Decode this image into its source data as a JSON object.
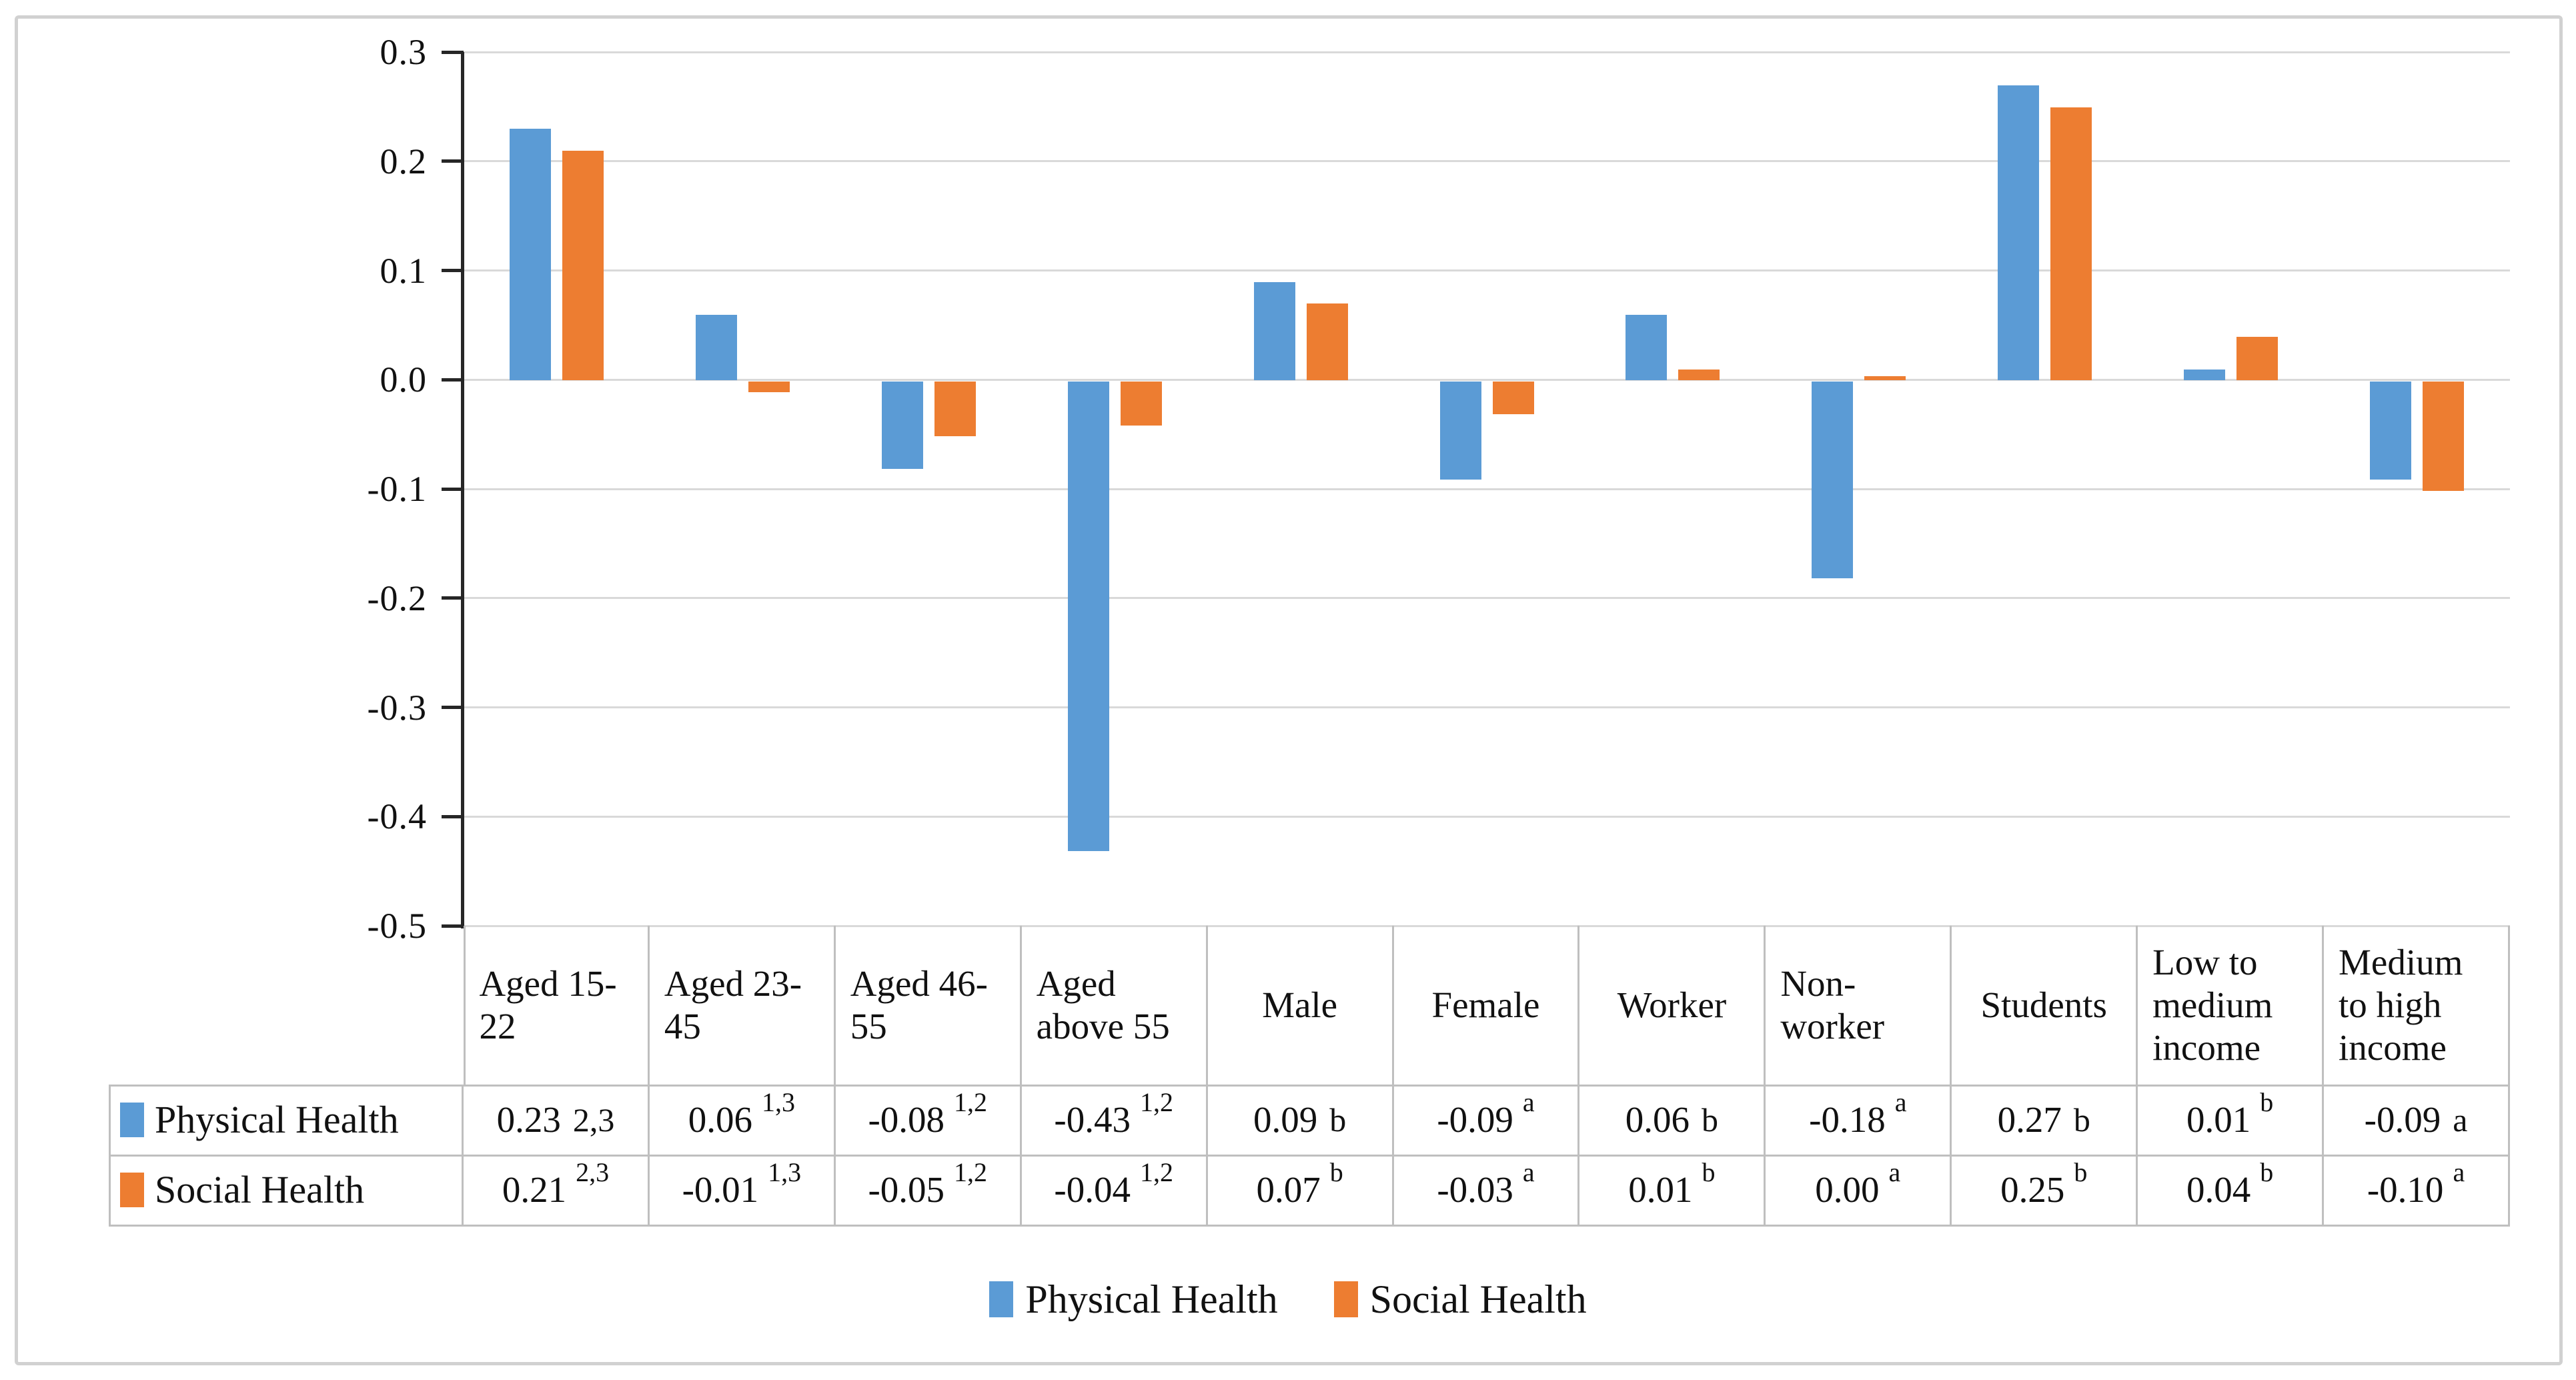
{
  "chart_data": {
    "type": "bar",
    "title": "",
    "xlabel": "",
    "ylabel": "",
    "ylim": [
      -0.5,
      0.3
    ],
    "y_ticks": [
      "0.3",
      "0.2",
      "0.1",
      "0.0",
      "-0.1",
      "-0.2",
      "-0.3",
      "-0.4",
      "-0.5"
    ],
    "grid": true,
    "legend_position": "bottom",
    "categories": [
      "Aged 15-22",
      "Aged 23-45",
      "Aged 46-55",
      "Aged above 55",
      "Male",
      "Female",
      "Worker",
      "Non-worker",
      "Students",
      "Low to medium income",
      "Medium to high income"
    ],
    "series": [
      {
        "name": "Physical Health",
        "color": "#5B9BD5",
        "values": [
          0.23,
          0.06,
          -0.08,
          -0.43,
          0.09,
          -0.09,
          0.06,
          -0.18,
          0.27,
          0.01,
          -0.09
        ]
      },
      {
        "name": "Social Health",
        "color": "#ED7D31",
        "values": [
          0.21,
          -0.01,
          -0.05,
          -0.04,
          0.07,
          -0.03,
          0.01,
          0.0,
          0.25,
          0.04,
          -0.1
        ]
      }
    ],
    "data_table": {
      "row_headers": [
        "Physical Health",
        "Social Health"
      ],
      "cells": [
        [
          {
            "v": "0.23",
            "s": "2,3",
            "raised": false
          },
          {
            "v": "0.06",
            "s": "1,3",
            "raised": true
          },
          {
            "v": "-0.08",
            "s": "1,2",
            "raised": true
          },
          {
            "v": "-0.43",
            "s": "1,2",
            "raised": true
          },
          {
            "v": "0.09",
            "s": "b",
            "raised": false
          },
          {
            "v": "-0.09",
            "s": "a",
            "raised": true
          },
          {
            "v": "0.06",
            "s": "b",
            "raised": false
          },
          {
            "v": "-0.18",
            "s": "a",
            "raised": true
          },
          {
            "v": "0.27",
            "s": "b",
            "raised": false
          },
          {
            "v": "0.01",
            "s": "b",
            "raised": true
          },
          {
            "v": "-0.09",
            "s": "a",
            "raised": false
          }
        ],
        [
          {
            "v": "0.21",
            "s": "2,3",
            "raised": true
          },
          {
            "v": "-0.01",
            "s": "1,3",
            "raised": true
          },
          {
            "v": "-0.05",
            "s": "1,2",
            "raised": true
          },
          {
            "v": "-0.04",
            "s": "1,2",
            "raised": true
          },
          {
            "v": "0.07",
            "s": "b",
            "raised": true
          },
          {
            "v": "-0.03",
            "s": "a",
            "raised": true
          },
          {
            "v": "0.01",
            "s": "b",
            "raised": true
          },
          {
            "v": "0.00",
            "s": "a",
            "raised": true
          },
          {
            "v": "0.25",
            "s": "b",
            "raised": true
          },
          {
            "v": "0.04",
            "s": "b",
            "raised": true
          },
          {
            "v": "-0.10",
            "s": "a",
            "raised": true
          }
        ]
      ]
    },
    "layout_colors": {
      "gridline": "#D9D9D9",
      "axis": "#262626",
      "table_border": "#BFBFBF",
      "frame_border": "#D1D1D1"
    }
  }
}
